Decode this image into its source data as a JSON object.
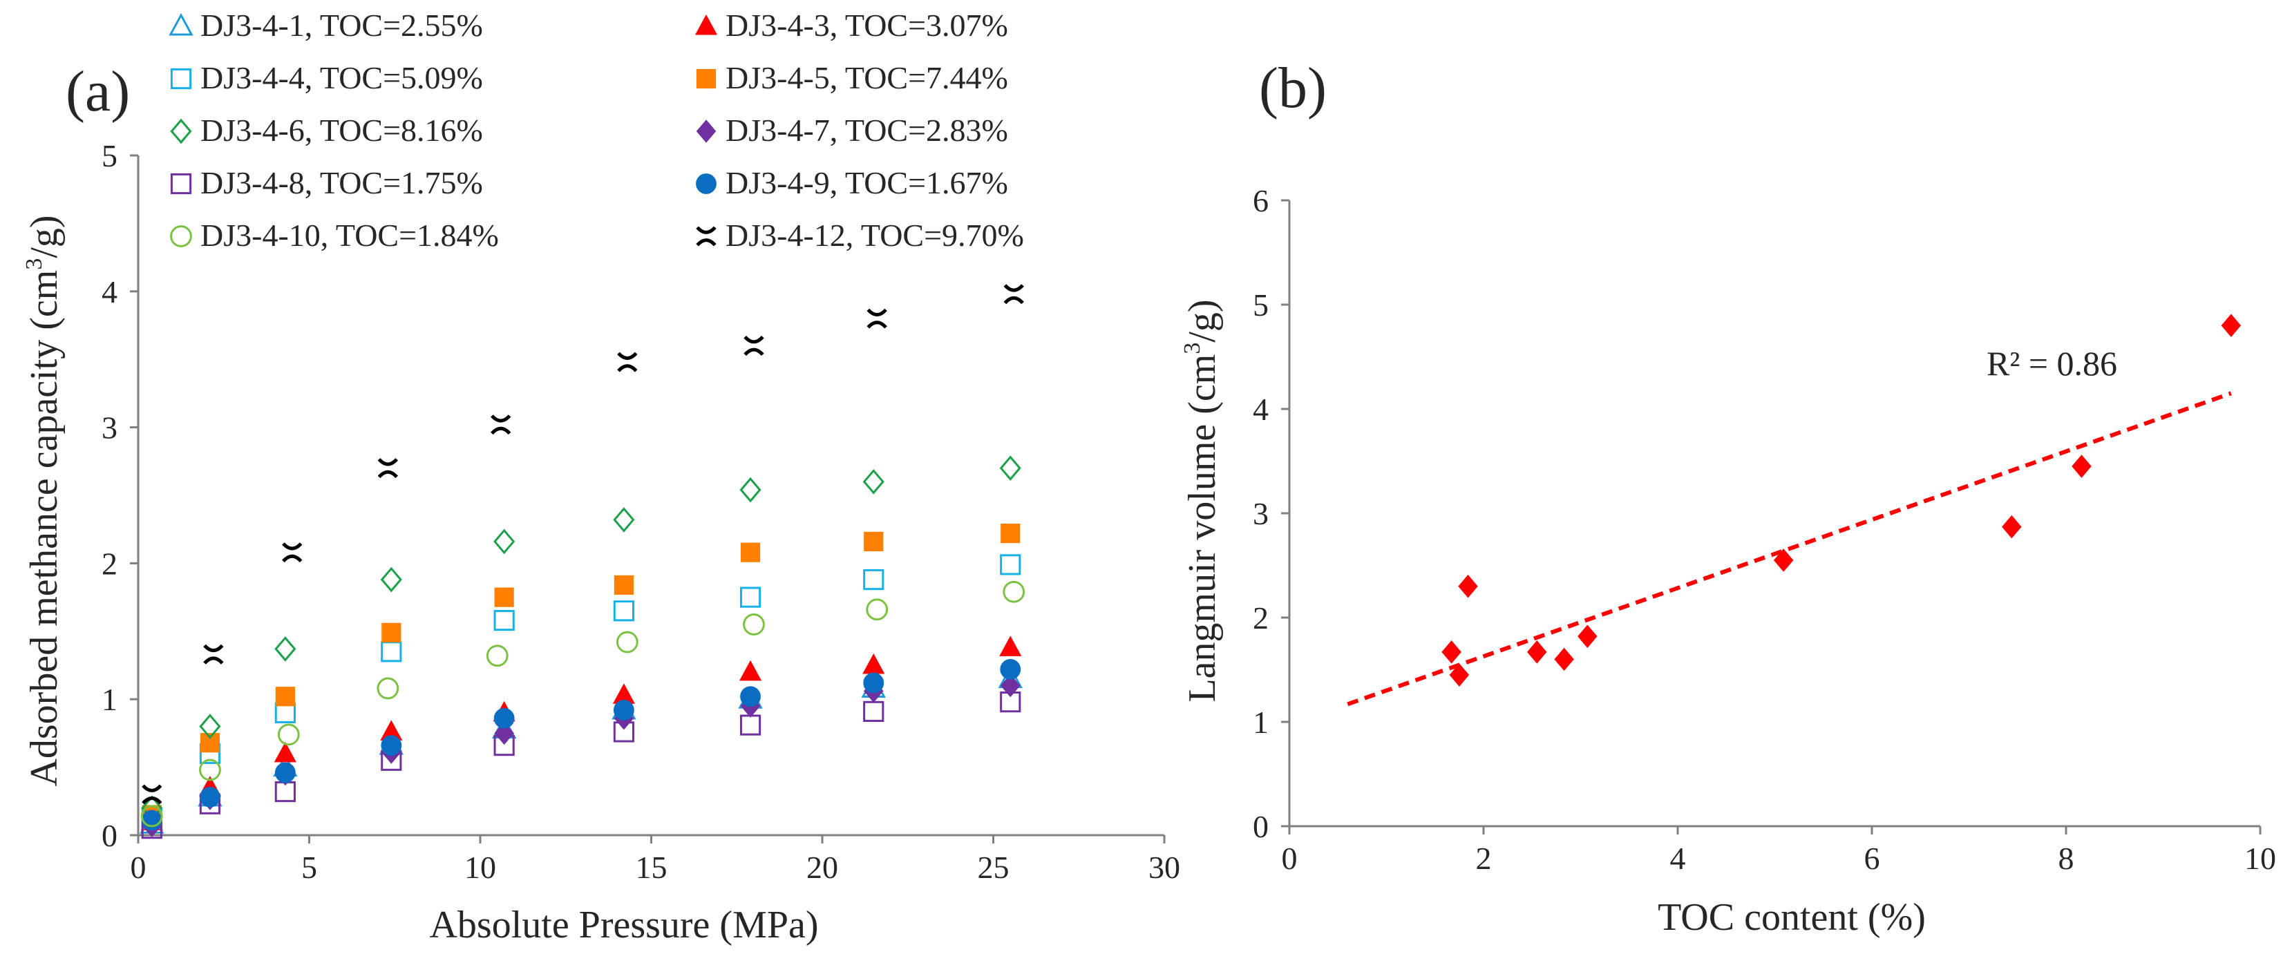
{
  "chart_data": [
    {
      "panel_label": "(a)",
      "type": "scatter",
      "title": "",
      "xlabel": "Absolute Pressure (MPa)",
      "ylabel": "Adsorbed methance capacity (cm3/g)",
      "ylabel_parts": [
        "Adsorbed methance capacity (cm",
        "3",
        "/g)"
      ],
      "xlim": [
        0,
        30
      ],
      "ylim": [
        0,
        5
      ],
      "xticks": [
        0,
        5,
        10,
        15,
        20,
        25,
        30
      ],
      "yticks": [
        0,
        1,
        2,
        3,
        4,
        5
      ],
      "grid": false,
      "legend_position": "top-left",
      "series": [
        {
          "name": "DJ3-4-1, TOC=2.55%",
          "marker": "triangle-open",
          "color": "#1F9AD6",
          "x": [
            0.4,
            2.1,
            4.3,
            7.4,
            10.7,
            14.2,
            17.9,
            21.5,
            25.5
          ],
          "y": [
            0.08,
            0.28,
            0.5,
            0.66,
            0.78,
            0.92,
            1.0,
            1.08,
            1.15
          ]
        },
        {
          "name": "DJ3-4-3, TOC=3.07%",
          "marker": "triangle-filled",
          "color": "#FF0000",
          "x": [
            0.4,
            2.1,
            4.3,
            7.4,
            10.7,
            14.2,
            17.9,
            21.5,
            25.5
          ],
          "y": [
            0.1,
            0.35,
            0.6,
            0.76,
            0.9,
            1.03,
            1.2,
            1.25,
            1.38
          ]
        },
        {
          "name": "DJ3-4-4, TOC=5.09%",
          "marker": "square-open",
          "color": "#17B1E8",
          "x": [
            0.4,
            2.1,
            4.3,
            7.4,
            10.7,
            14.2,
            17.9,
            21.5,
            25.5
          ],
          "y": [
            0.12,
            0.6,
            0.9,
            1.35,
            1.58,
            1.65,
            1.75,
            1.88,
            1.99
          ]
        },
        {
          "name": "DJ3-4-5, TOC=7.44%",
          "marker": "square-filled",
          "color": "#FF8000",
          "x": [
            0.4,
            2.1,
            4.3,
            7.4,
            10.7,
            14.2,
            17.9,
            21.5,
            25.5
          ],
          "y": [
            0.15,
            0.68,
            1.02,
            1.49,
            1.75,
            1.84,
            2.08,
            2.16,
            2.22
          ]
        },
        {
          "name": "DJ3-4-6, TOC=8.16%",
          "marker": "diamond-open",
          "color": "#1BA14A",
          "x": [
            0.4,
            2.1,
            4.3,
            7.4,
            10.7,
            14.2,
            17.9,
            21.5,
            25.5
          ],
          "y": [
            0.2,
            0.8,
            1.37,
            1.88,
            2.16,
            2.32,
            2.54,
            2.6,
            2.7
          ]
        },
        {
          "name": "DJ3-4-7, TOC=2.83%",
          "marker": "diamond-filled",
          "color": "#7030A0",
          "x": [
            0.4,
            2.1,
            4.3,
            7.4,
            10.7,
            14.2,
            17.9,
            21.5,
            25.5
          ],
          "y": [
            0.07,
            0.27,
            0.45,
            0.61,
            0.75,
            0.86,
            0.95,
            1.06,
            1.1
          ]
        },
        {
          "name": "DJ3-4-8, TOC=1.75%",
          "marker": "square-open",
          "color": "#7030A0",
          "x": [
            0.4,
            2.1,
            4.3,
            7.4,
            10.7,
            14.2,
            17.9,
            21.5,
            25.5
          ],
          "y": [
            0.05,
            0.23,
            0.32,
            0.55,
            0.66,
            0.76,
            0.81,
            0.91,
            0.98
          ]
        },
        {
          "name": "DJ3-4-9, TOC=1.67%",
          "marker": "circle-filled",
          "color": "#0A6DC2",
          "x": [
            0.4,
            2.1,
            4.3,
            7.4,
            10.7,
            14.2,
            17.9,
            21.5,
            25.5
          ],
          "y": [
            0.11,
            0.28,
            0.46,
            0.66,
            0.86,
            0.92,
            1.02,
            1.12,
            1.22
          ]
        },
        {
          "name": "DJ3-4-10, TOC=1.84%",
          "marker": "circle-open",
          "color": "#7CC242",
          "x": [
            0.4,
            2.1,
            4.4,
            7.3,
            10.5,
            14.3,
            18.0,
            21.6,
            25.6
          ],
          "y": [
            0.14,
            0.48,
            0.74,
            1.08,
            1.32,
            1.42,
            1.55,
            1.66,
            1.79
          ]
        },
        {
          "name": "DJ3-4-12, TOC=9.70%",
          "marker": "cross-open",
          "color": "#000000",
          "x": [
            0.4,
            2.2,
            4.5,
            7.3,
            10.6,
            14.3,
            18.0,
            21.6,
            25.6
          ],
          "y": [
            0.3,
            1.33,
            2.08,
            2.7,
            3.02,
            3.48,
            3.6,
            3.8,
            3.98
          ]
        }
      ]
    },
    {
      "panel_label": "(b)",
      "type": "scatter",
      "title": "",
      "xlabel": "TOC content (%)",
      "ylabel": "Langmuir volume (cm3/g)",
      "ylabel_parts": [
        "Langmuir volume (cm",
        "3",
        "/g)"
      ],
      "xlim": [
        0,
        10
      ],
      "ylim": [
        0,
        6
      ],
      "xticks": [
        0,
        2,
        4,
        6,
        8,
        10
      ],
      "yticks": [
        0,
        1,
        2,
        3,
        4,
        5,
        6
      ],
      "grid": false,
      "series": [
        {
          "name": "Langmuir volume",
          "marker": "diamond-filled",
          "color": "#FF0000",
          "x": [
            1.67,
            1.75,
            1.84,
            2.55,
            2.83,
            3.07,
            5.09,
            7.44,
            8.16,
            9.7
          ],
          "y": [
            1.67,
            1.45,
            2.3,
            1.67,
            1.6,
            1.82,
            2.55,
            2.87,
            3.45,
            4.8
          ]
        }
      ],
      "trendline": {
        "type": "linear",
        "x_range": [
          0.6,
          9.7
        ],
        "y_range": [
          1.17,
          4.15
        ],
        "color": "#FF0000",
        "style": "dashed"
      },
      "annotation": "R² = 0.86"
    }
  ]
}
